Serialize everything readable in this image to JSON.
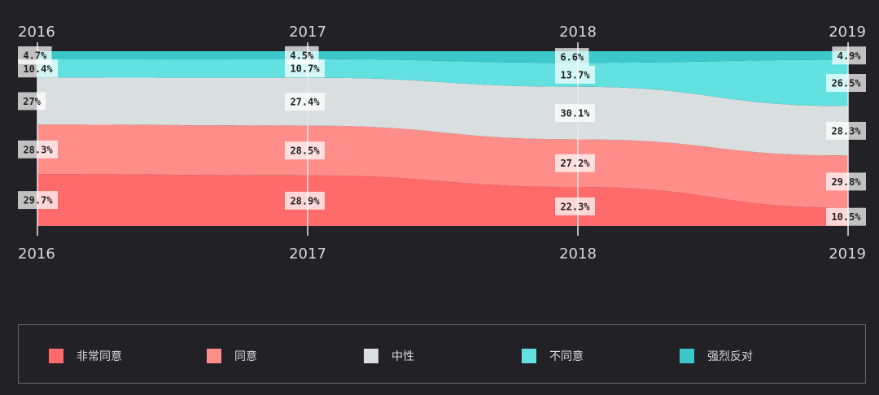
{
  "chart_data": {
    "type": "area",
    "stacked": true,
    "normalized": true,
    "x": [
      "2016",
      "2017",
      "2018",
      "2019"
    ],
    "series": [
      {
        "name": "非常同意",
        "color": "#ff6b6b",
        "values": [
          29.7,
          28.9,
          22.3,
          10.5
        ],
        "labels": [
          "29.7%",
          "28.9%",
          "22.3%",
          "10.5%"
        ]
      },
      {
        "name": "同意",
        "color": "#ff8e8a",
        "values": [
          28.3,
          28.5,
          27.2,
          29.8
        ],
        "labels": [
          "28.3%",
          "28.5%",
          "27.2%",
          "29.8%"
        ]
      },
      {
        "name": "中性",
        "color": "#d9dedf",
        "values": [
          27,
          27.4,
          30.1,
          28.3
        ],
        "labels": [
          "27%",
          "27.4%",
          "30.1%",
          "28.3%"
        ]
      },
      {
        "name": "不同意",
        "color": "#63e0e0",
        "values": [
          10.4,
          10.7,
          13.7,
          26.5
        ],
        "labels": [
          "10.4%",
          "10.7%",
          "13.7%",
          "26.5%"
        ]
      },
      {
        "name": "强烈反对",
        "color": "#3cc8c8",
        "values": [
          4.7,
          4.5,
          6.6,
          4.9
        ],
        "labels": [
          "4.7%",
          "4.5%",
          "6.6%",
          "4.9%"
        ]
      }
    ],
    "axis_labels_top": [
      "2016",
      "2017",
      "2018",
      "2019"
    ],
    "axis_labels_bottom": [
      "2016",
      "2017",
      "2018",
      "2019"
    ],
    "legend_position": "bottom",
    "grid": false
  },
  "legend": [
    {
      "label": "非常同意",
      "color": "#ff6b6b"
    },
    {
      "label": "同意",
      "color": "#ff8e8a"
    },
    {
      "label": "中性",
      "color": "#d9dedf"
    },
    {
      "label": "不同意",
      "color": "#63e0e0"
    },
    {
      "label": "强烈反对",
      "color": "#3cc8c8"
    }
  ]
}
